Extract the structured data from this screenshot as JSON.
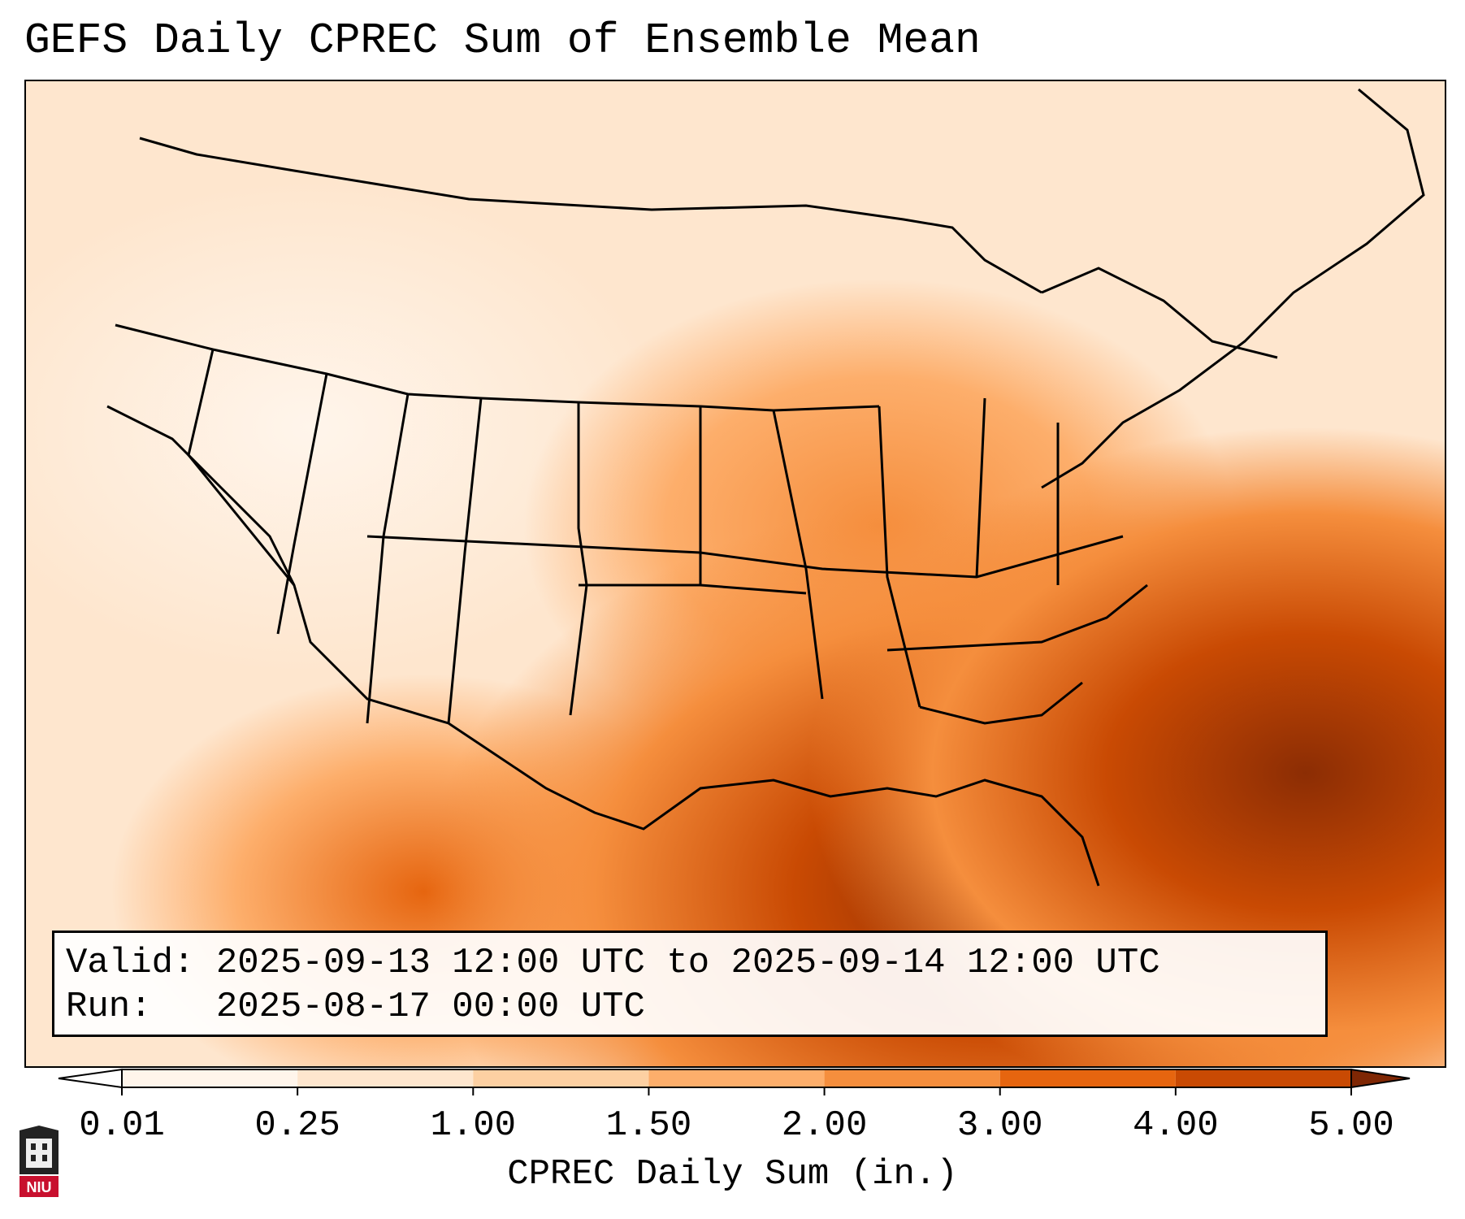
{
  "title": "GEFS Daily CPREC Sum of Ensemble Mean",
  "info": {
    "valid_label": "Valid:",
    "valid_value": "2025-09-13 12:00 UTC to 2025-09-14 12:00 UTC",
    "run_label": "Run:",
    "run_value": "2025-08-17 00:00 UTC"
  },
  "colorbar": {
    "label": "CPREC Daily Sum (in.)",
    "ticks": [
      "0.01",
      "0.25",
      "1.00",
      "1.50",
      "2.00",
      "3.00",
      "4.00",
      "5.00"
    ],
    "colors": [
      "#fff5eb",
      "#fee6ce",
      "#fdd0a2",
      "#fdae6b",
      "#f58e3d",
      "#e6650f",
      "#c94a03",
      "#8c2d04"
    ],
    "under_color": "#ffffff",
    "over_color": "#7f2704"
  },
  "logo": {
    "text": "NIU",
    "color": "#c8102e"
  }
}
